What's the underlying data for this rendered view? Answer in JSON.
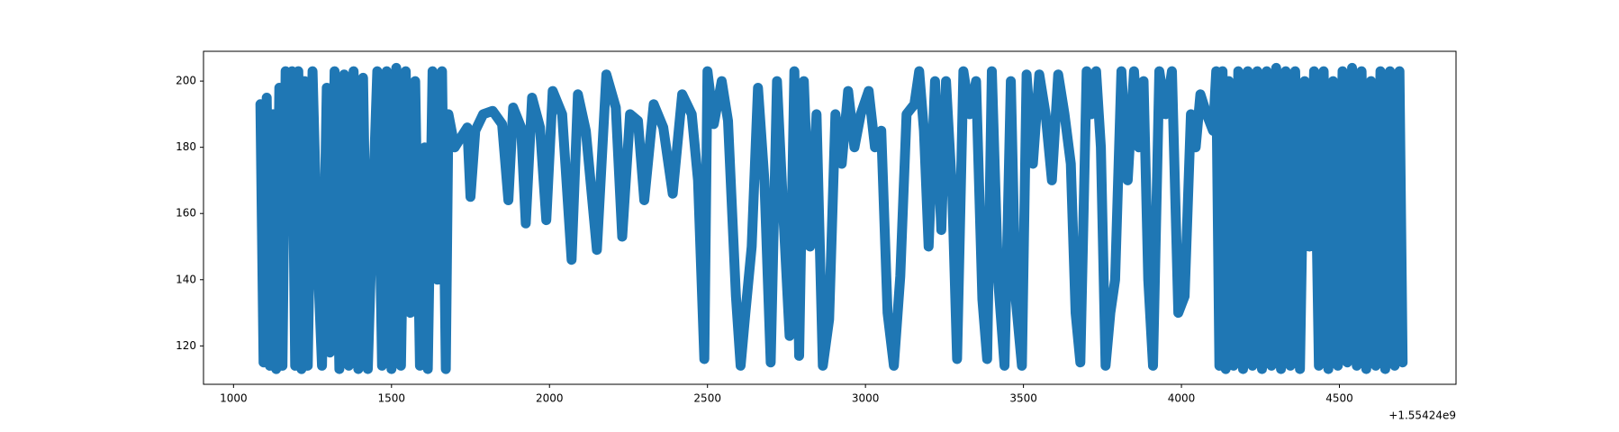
{
  "chart_data": {
    "type": "line",
    "color": "#1f77b4",
    "x_offset_label": "+1.55424e9",
    "x": [
      1085,
      1095,
      1105,
      1115,
      1125,
      1135,
      1145,
      1155,
      1165,
      1175,
      1185,
      1195,
      1205,
      1215,
      1225,
      1235,
      1250,
      1265,
      1280,
      1295,
      1305,
      1320,
      1335,
      1350,
      1365,
      1380,
      1395,
      1410,
      1425,
      1440,
      1455,
      1470,
      1485,
      1500,
      1515,
      1530,
      1545,
      1560,
      1575,
      1590,
      1605,
      1615,
      1630,
      1645,
      1660,
      1672,
      1680,
      1700,
      1720,
      1740,
      1750,
      1765,
      1790,
      1820,
      1850,
      1870,
      1885,
      1910,
      1925,
      1945,
      1970,
      1990,
      2010,
      2040,
      2070,
      2090,
      2115,
      2150,
      2180,
      2210,
      2230,
      2255,
      2280,
      2300,
      2330,
      2360,
      2390,
      2420,
      2450,
      2470,
      2490,
      2500,
      2520,
      2545,
      2565,
      2590,
      2605,
      2620,
      2640,
      2660,
      2680,
      2700,
      2720,
      2740,
      2760,
      2775,
      2790,
      2805,
      2825,
      2845,
      2865,
      2885,
      2905,
      2925,
      2945,
      2965,
      2985,
      3010,
      3030,
      3050,
      3070,
      3090,
      3110,
      3130,
      3155,
      3170,
      3185,
      3200,
      3220,
      3240,
      3255,
      3275,
      3290,
      3310,
      3330,
      3350,
      3370,
      3385,
      3400,
      3420,
      3440,
      3460,
      3475,
      3495,
      3510,
      3530,
      3550,
      3570,
      3590,
      3610,
      3630,
      3650,
      3665,
      3680,
      3700,
      3715,
      3730,
      3745,
      3760,
      3775,
      3790,
      3810,
      3830,
      3850,
      3865,
      3880,
      3895,
      3910,
      3930,
      3950,
      3970,
      3990,
      4010,
      4030,
      4045,
      4060,
      4080,
      4100,
      4110,
      4120,
      4130,
      4140,
      4150,
      4165,
      4180,
      4195,
      4210,
      4225,
      4240,
      4255,
      4270,
      4285,
      4300,
      4315,
      4330,
      4345,
      4360,
      4375,
      4390,
      4405,
      4420,
      4435,
      4450,
      4465,
      4480,
      4495,
      4510,
      4525,
      4540,
      4555,
      4570,
      4585,
      4600,
      4615,
      4630,
      4645,
      4660,
      4675,
      4690,
      4700
    ],
    "values": [
      193,
      115,
      195,
      114,
      190,
      113,
      198,
      114,
      203,
      160,
      203,
      114,
      203,
      113,
      200,
      114,
      203,
      150,
      114,
      198,
      118,
      203,
      113,
      202,
      114,
      203,
      113,
      201,
      113,
      160,
      203,
      114,
      203,
      113,
      204,
      114,
      203,
      130,
      200,
      114,
      180,
      113,
      203,
      140,
      203,
      113,
      190,
      180,
      183,
      186,
      165,
      185,
      190,
      191,
      187,
      164,
      192,
      186,
      157,
      195,
      186,
      158,
      197,
      190,
      146,
      196,
      185,
      149,
      202,
      192,
      153,
      190,
      188,
      164,
      193,
      186,
      166,
      196,
      190,
      170,
      116,
      203,
      187,
      200,
      188,
      135,
      114,
      130,
      150,
      198,
      170,
      115,
      200,
      160,
      123,
      203,
      117,
      200,
      150,
      190,
      114,
      128,
      190,
      175,
      197,
      180,
      190,
      197,
      180,
      185,
      130,
      114,
      141,
      190,
      193,
      203,
      185,
      150,
      200,
      155,
      200,
      165,
      116,
      203,
      190,
      200,
      134,
      116,
      203,
      140,
      114,
      200,
      135,
      114,
      202,
      175,
      202,
      190,
      170,
      202,
      190,
      175,
      130,
      115,
      203,
      190,
      203,
      180,
      114,
      130,
      140,
      203,
      170,
      203,
      180,
      200,
      140,
      114,
      203,
      190,
      203,
      130,
      135,
      190,
      180,
      196,
      190,
      185,
      203,
      114,
      203,
      113,
      200,
      114,
      203,
      113,
      203,
      114,
      203,
      113,
      203,
      114,
      204,
      113,
      203,
      114,
      203,
      113,
      200,
      150,
      203,
      114,
      203,
      113,
      200,
      114,
      203,
      115,
      204,
      114,
      203,
      113,
      200,
      114,
      203,
      113,
      203,
      114,
      203,
      115
    ],
    "xlim": [
      905,
      4869
    ],
    "ylim": [
      108.4,
      209
    ],
    "xticks": [
      1000,
      1500,
      2000,
      2500,
      3000,
      3500,
      4000,
      4500
    ],
    "yticks": [
      120,
      140,
      160,
      180,
      200
    ]
  }
}
